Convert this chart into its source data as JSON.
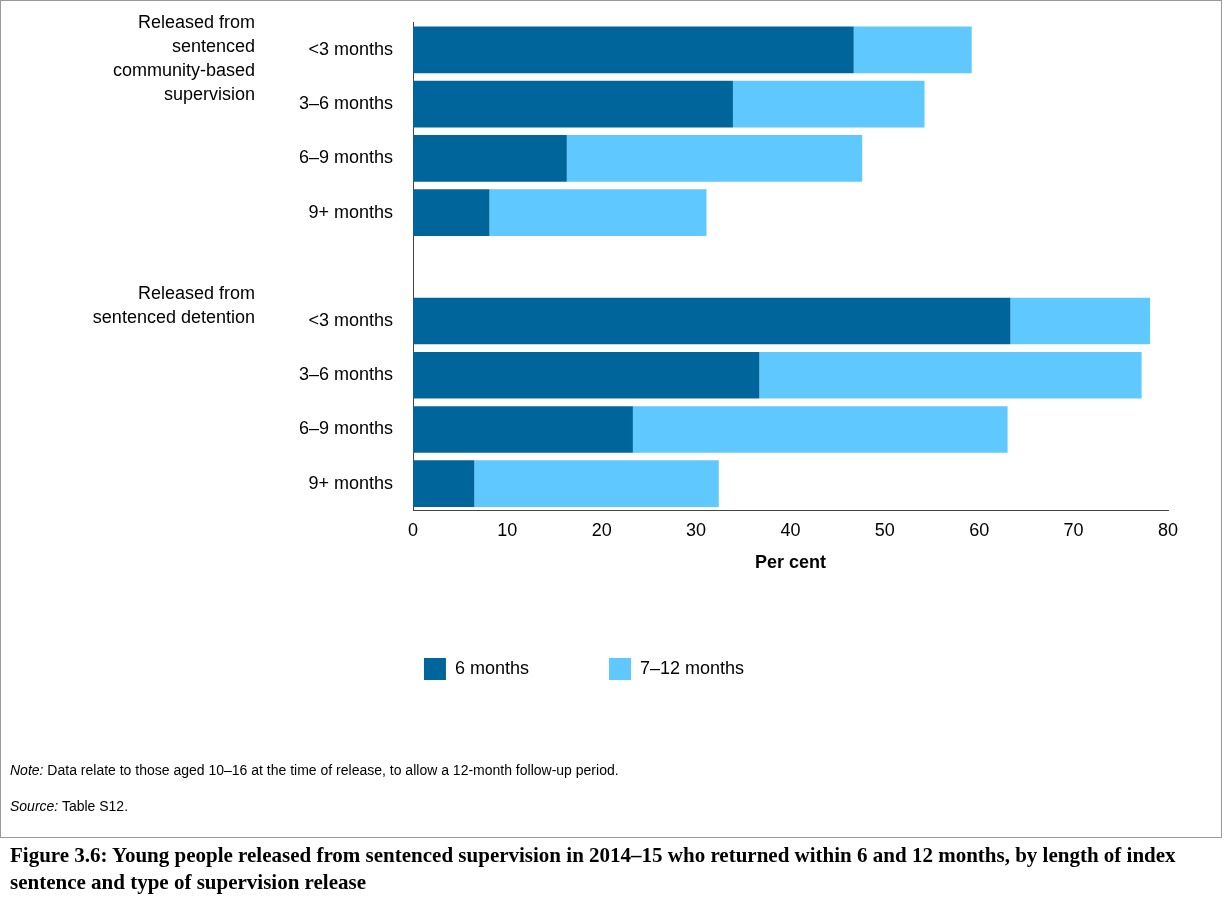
{
  "chart_data": {
    "type": "bar",
    "orientation": "horizontal",
    "stacked": true,
    "title": "Figure 3.6: Young people released from sentenced supervision in 2014–15 who returned within 6 and 12 months, by length of index sentence and type of supervision release",
    "xlabel": "Per cent",
    "categories": [
      "<3 months",
      "3–6 months",
      "6–9 months",
      "9+ months",
      null,
      "<3 months",
      "3–6 months",
      "6–9 months",
      "9+ months"
    ],
    "series": [
      {
        "name": "6 months",
        "color": "#00659a",
        "values": [
          46.7,
          33.9,
          16.3,
          8.1,
          null,
          63.3,
          36.7,
          23.3,
          6.5
        ]
      },
      {
        "name": "7–12 months",
        "color": "#5fc9ff",
        "values": [
          12.5,
          20.3,
          31.3,
          23.0,
          null,
          14.8,
          40.5,
          39.7,
          25.9
        ]
      }
    ],
    "xlim": [
      0,
      80
    ],
    "xticks": [
      0,
      10,
      20,
      30,
      40,
      50,
      60,
      70,
      80
    ],
    "grid": false,
    "legend": "bottom",
    "annotations": [
      "Released from sentenced community-based supervision",
      "Released from sentenced detention",
      "Note: Data relate to those aged 10–16 at the time of release, to allow a 12-month follow-up period.",
      "Source: Table S12."
    ]
  }
}
